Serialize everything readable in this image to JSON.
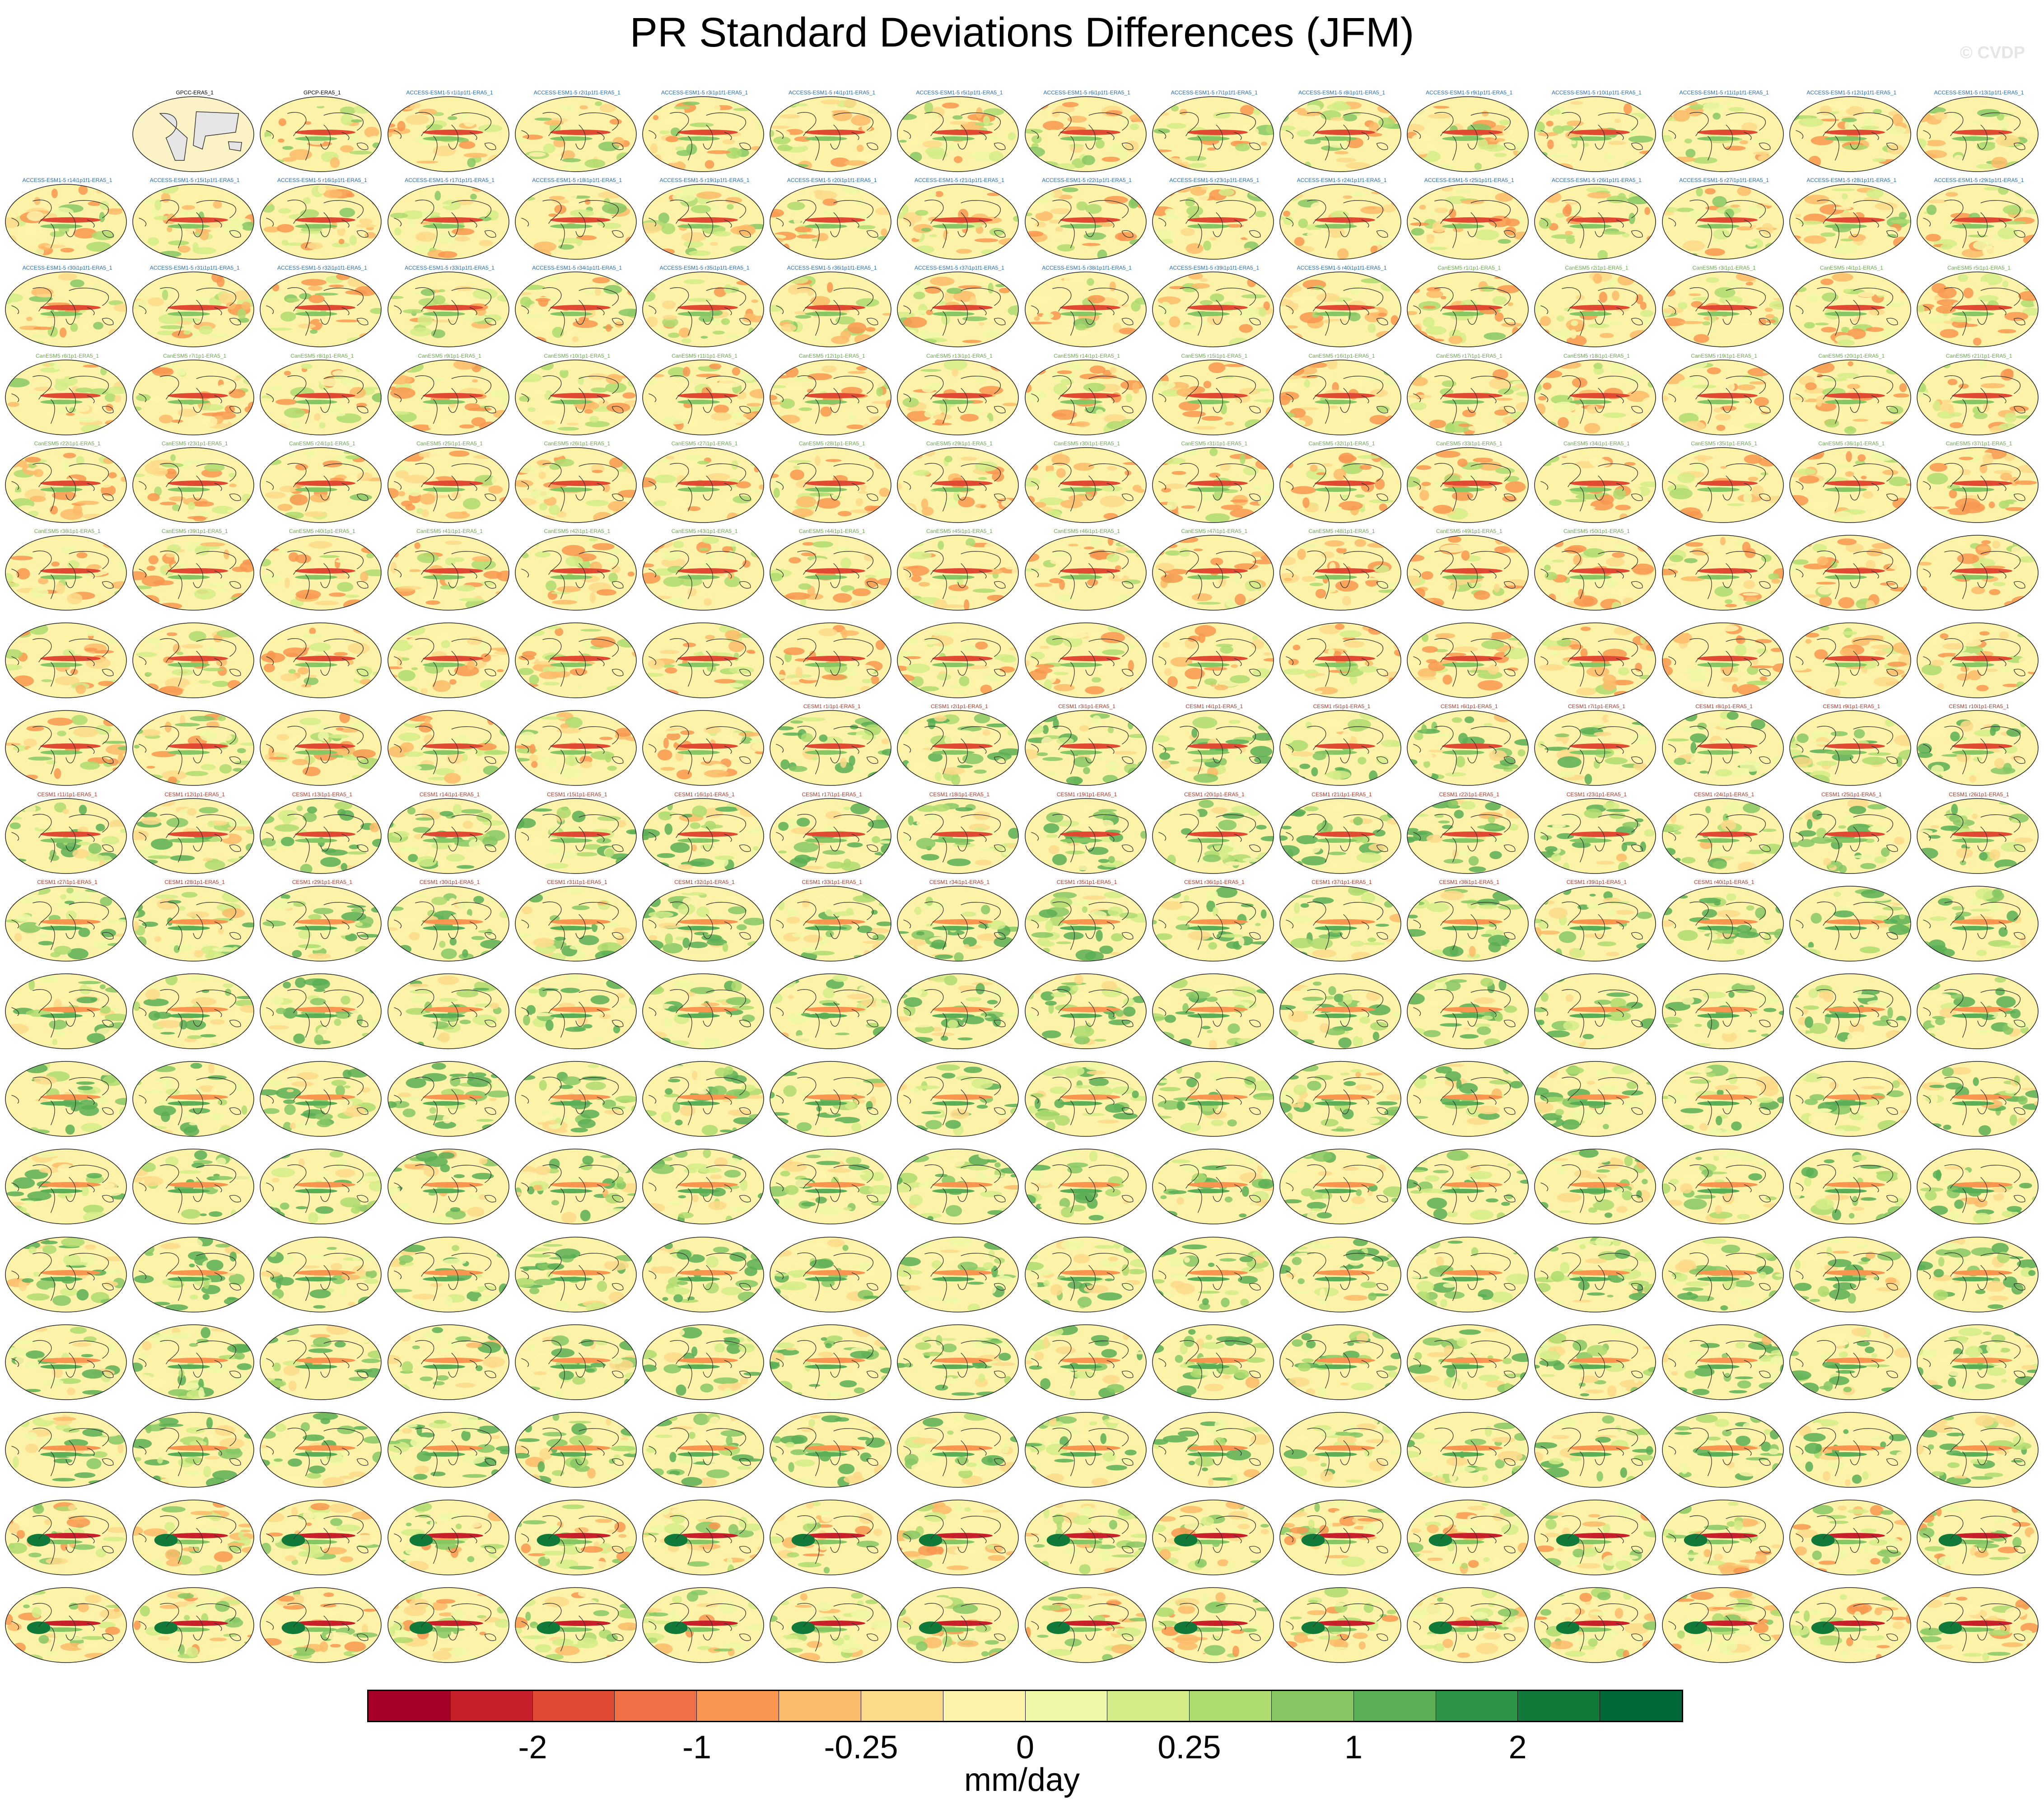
{
  "title": "PR Standard Deviations Differences (JFM)",
  "watermark": "© CVDP",
  "colors": {
    "ocean_land_default": "#fdf3a8",
    "ref_panel_land": "#e6e6e6",
    "ref_panel_ocean": "#fbf2c6",
    "coast": "#333333",
    "label_access": "#2a6cb2",
    "label_canesm": "#6aa84f",
    "label_cesm1": "#b0392a",
    "label_cesm2": "#8a7ec4",
    "label_cnrm": "#e0a060"
  },
  "colorbar": {
    "colors": [
      "#a50026",
      "#c8202a",
      "#e04a33",
      "#f07046",
      "#f8964f",
      "#fbbb68",
      "#fdd98a",
      "#fef3aa",
      "#f0f7a6",
      "#d3ec88",
      "#aedb70",
      "#86c763",
      "#5aae56",
      "#2e9448",
      "#117a3a",
      "#006837"
    ],
    "tick_labels": [
      "-2",
      "-1",
      "-0.25",
      "0",
      "0.25",
      "1",
      "2"
    ],
    "tick_boundary_index": [
      2,
      4,
      6,
      8,
      10,
      12,
      14
    ],
    "units": "mm/day"
  },
  "panels": {
    "columns": 16,
    "rows": 18,
    "labels": [
      "GPCC-ERA5_1",
      "GPCP-ERA5_1",
      "ACCESS-ESM1-5 r1i1p1f1-ERA5_1",
      "ACCESS-ESM1-5 r2i1p1f1-ERA5_1",
      "ACCESS-ESM1-5 r3i1p1f1-ERA5_1",
      "ACCESS-ESM1-5 r4i1p1f1-ERA5_1",
      "ACCESS-ESM1-5 r5i1p1f1-ERA5_1",
      "ACCESS-ESM1-5 r6i1p1f1-ERA5_1",
      "ACCESS-ESM1-5 r7i1p1f1-ERA5_1",
      "ACCESS-ESM1-5 r8i1p1f1-ERA5_1",
      "ACCESS-ESM1-5 r9i1p1f1-ERA5_1",
      "ACCESS-ESM1-5 r10i1p1f1-ERA5_1",
      "ACCESS-ESM1-5 r11i1p1f1-ERA5_1",
      "ACCESS-ESM1-5 r12i1p1f1-ERA5_1",
      "ACCESS-ESM1-5 r13i1p1f1-ERA5_1",
      "ACCESS-ESM1-5 r14i1p1f1-ERA5_1",
      "ACCESS-ESM1-5 r15i1p1f1-ERA5_1",
      "ACCESS-ESM1-5 r16i1p1f1-ERA5_1",
      "ACCESS-ESM1-5 r17i1p1f1-ERA5_1",
      "ACCESS-ESM1-5 r18i1p1f1-ERA5_1",
      "ACCESS-ESM1-5 r19i1p1f1-ERA5_1",
      "ACCESS-ESM1-5 r20i1p1f1-ERA5_1",
      "ACCESS-ESM1-5 r21i1p1f1-ERA5_1",
      "ACCESS-ESM1-5 r22i1p1f1-ERA5_1",
      "ACCESS-ESM1-5 r23i1p1f1-ERA5_1",
      "ACCESS-ESM1-5 r24i1p1f1-ERA5_1",
      "ACCESS-ESM1-5 r25i1p1f1-ERA5_1",
      "ACCESS-ESM1-5 r26i1p1f1-ERA5_1",
      "ACCESS-ESM1-5 r27i1p1f1-ERA5_1",
      "ACCESS-ESM1-5 r28i1p1f1-ERA5_1",
      "ACCESS-ESM1-5 r29i1p1f1-ERA5_1",
      "ACCESS-ESM1-5 r30i1p1f1-ERA5_1",
      "ACCESS-ESM1-5 r31i1p1f1-ERA5_1",
      "ACCESS-ESM1-5 r32i1p1f1-ERA5_1",
      "ACCESS-ESM1-5 r33i1p1f1-ERA5_1",
      "ACCESS-ESM1-5 r34i1p1f1-ERA5_1",
      "ACCESS-ESM1-5 r35i1p1f1-ERA5_1",
      "ACCESS-ESM1-5 r36i1p1f1-ERA5_1",
      "ACCESS-ESM1-5 r37i1p1f1-ERA5_1",
      "ACCESS-ESM1-5 r38i1p1f1-ERA5_1",
      "ACCESS-ESM1-5 r39i1p1f1-ERA5_1",
      "ACCESS-ESM1-5 r40i1p1f1-ERA5_1",
      "CanESM5 r1i1p1-ERA5_1",
      "CanESM5 r2i1p1-ERA5_1",
      "CanESM5 r3i1p1-ERA5_1",
      "CanESM5 r4i1p1-ERA5_1",
      "CanESM5 r5i1p1-ERA5_1",
      "CanESM5 r6i1p1-ERA5_1",
      "CanESM5 r7i1p1-ERA5_1",
      "CanESM5 r8i1p1-ERA5_1",
      "CanESM5 r9i1p1-ERA5_1",
      "CanESM5 r10i1p1-ERA5_1",
      "CanESM5 r11i1p1-ERA5_1",
      "CanESM5 r12i1p1-ERA5_1",
      "CanESM5 r13i1p1-ERA5_1",
      "CanESM5 r14i1p1-ERA5_1",
      "CanESM5 r15i1p1-ERA5_1",
      "CanESM5 r16i1p1-ERA5_1",
      "CanESM5 r17i1p1-ERA5_1",
      "CanESM5 r18i1p1-ERA5_1",
      "CanESM5 r19i1p1-ERA5_1",
      "CanESM5 r20i1p1-ERA5_1",
      "CanESM5 r21i1p1-ERA5_1",
      "CanESM5 r22i1p1-ERA5_1",
      "CanESM5 r23i1p1-ERA5_1",
      "CanESM5 r24i1p1-ERA5_1",
      "CanESM5 r25i1p1-ERA5_1",
      "CanESM5 r26i1p1-ERA5_1",
      "CanESM5 r27i1p1-ERA5_1",
      "CanESM5 r28i1p1-ERA5_1",
      "CanESM5 r29i1p1-ERA5_1",
      "CanESM5 r30i1p1-ERA5_1",
      "CanESM5 r31i1p1-ERA5_1",
      "CanESM5 r32i1p1-ERA5_1",
      "CanESM5 r33i1p1-ERA5_1",
      "CanESM5 r34i1p1-ERA5_1",
      "CanESM5 r35i1p1-ERA5_1",
      "CanESM5 r36i1p1-ERA5_1",
      "CanESM5 r37i1p1-ERA5_1",
      "CanESM5 r38i1p1-ERA5_1",
      "CanESM5 r39i1p1-ERA5_1",
      "CanESM5 r40i1p1-ERA5_1",
      "CanESM5 r41i1p1-ERA5_1",
      "CanESM5 r42i1p1-ERA5_1",
      "CanESM5 r43i1p1-ERA5_1",
      "CanESM5 r44i1p1-ERA5_1",
      "CanESM5 r45i1p1-ERA5_1",
      "CanESM5 r46i1p1-ERA5_1",
      "CanESM5 r47i1p1-ERA5_1",
      "CanESM5 r48i1p1-ERA5_1",
      "CanESM5 r49i1p1-ERA5_1",
      "CanESM5 r50i1p1-ERA5_1",
      "",
      "",
      "",
      "",
      "",
      "",
      "",
      "",
      "",
      "",
      "",
      "",
      "",
      "",
      "",
      "",
      "",
      "",
      "",
      "",
      "",
      "",
      "",
      "",
      "",
      "CESM1 r1i1p1-ERA5_1",
      "CESM1 r2i1p1-ERA5_1",
      "CESM1 r3i1p1-ERA5_1",
      "CESM1 r4i1p1-ERA5_1",
      "CESM1 r5i1p1-ERA5_1",
      "CESM1 r6i1p1-ERA5_1",
      "CESM1 r7i1p1-ERA5_1",
      "CESM1 r8i1p1-ERA5_1",
      "CESM1 r9i1p1-ERA5_1",
      "CESM1 r10i1p1-ERA5_1",
      "CESM1 r11i1p1-ERA5_1",
      "CESM1 r12i1p1-ERA5_1",
      "CESM1 r13i1p1-ERA5_1",
      "CESM1 r14i1p1-ERA5_1",
      "CESM1 r15i1p1-ERA5_1",
      "CESM1 r16i1p1-ERA5_1",
      "CESM1 r17i1p1-ERA5_1",
      "CESM1 r18i1p1-ERA5_1",
      "CESM1 r19i1p1-ERA5_1",
      "CESM1 r20i1p1-ERA5_1",
      "CESM1 r21i1p1-ERA5_1",
      "CESM1 r22i1p1-ERA5_1",
      "CESM1 r23i1p1-ERA5_1",
      "CESM1 r24i1p1-ERA5_1",
      "CESM1 r25i1p1-ERA5_1",
      "CESM1 r26i1p1-ERA5_1",
      "CESM1 r27i1p1-ERA5_1",
      "CESM1 r28i1p1-ERA5_1",
      "CESM1 r29i1p1-ERA5_1",
      "CESM1 r30i1p1-ERA5_1",
      "CESM1 r31i1p1-ERA5_1",
      "CESM1 r32i1p1-ERA5_1",
      "CESM1 r33i1p1-ERA5_1",
      "CESM1 r34i1p1-ERA5_1",
      "CESM1 r35i1p1-ERA5_1",
      "CESM1 r36i1p1-ERA5_1",
      "CESM1 r37i1p1-ERA5_1",
      "CESM1 r38i1p1-ERA5_1",
      "CESM1 r39i1p1-ERA5_1",
      "CESM1 r40i1p1-ERA5_1",
      "",
      "",
      "",
      "",
      "",
      "",
      "",
      "",
      "",
      "",
      "",
      "",
      "",
      "",
      "",
      "",
      "",
      "",
      "",
      "",
      "",
      "",
      "",
      "",
      "",
      "",
      "",
      "",
      "",
      "",
      "",
      "",
      "",
      "",
      "",
      "",
      "",
      "",
      "",
      "",
      "",
      "",
      "",
      "",
      "",
      "",
      "",
      "",
      "",
      "",
      "",
      "",
      "",
      "",
      "",
      "",
      "",
      "",
      "",
      "",
      "",
      "",
      "",
      "",
      "",
      "",
      "",
      "",
      "",
      "",
      "",
      "",
      "",
      "",
      "",
      "",
      "",
      "",
      "",
      "",
      "",
      "",
      "",
      "",
      "",
      "",
      "",
      "",
      "",
      "",
      "",
      "",
      "",
      "",
      "",
      "",
      "",
      "",
      "",
      "",
      "",
      "",
      "",
      "",
      "",
      "",
      "",
      "",
      "",
      "",
      "",
      "",
      "",
      "",
      "",
      "",
      "",
      "",
      "",
      "",
      "",
      "",
      "",
      "",
      "",
      "",
      "",
      "",
      "",
      ""
    ]
  }
}
